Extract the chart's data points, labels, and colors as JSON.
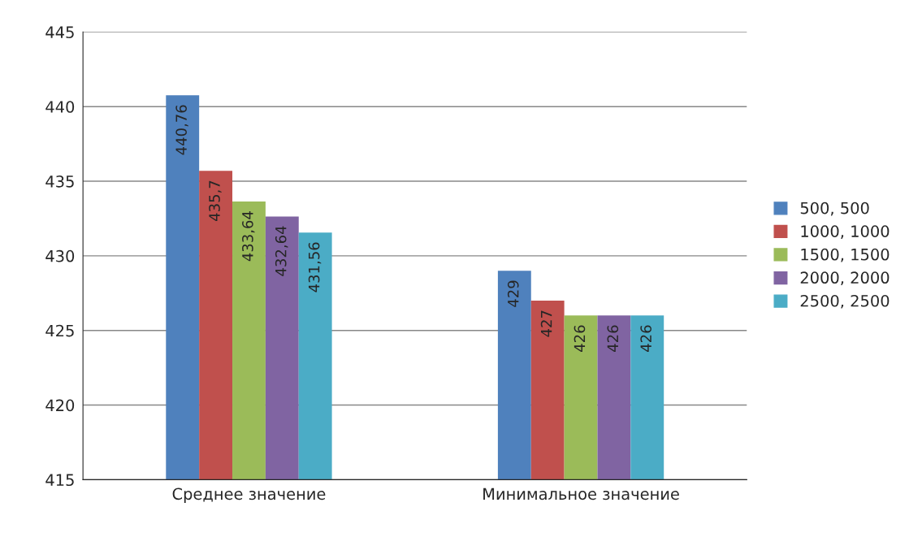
{
  "chart_data": {
    "type": "bar",
    "categories": [
      "Среднее значение",
      "Минимальное значение"
    ],
    "series": [
      {
        "name": "500, 500",
        "color": "#4f81bd",
        "values": [
          440.76,
          429
        ],
        "value_labels": [
          "440,76",
          "429"
        ]
      },
      {
        "name": "1000, 1000",
        "color": "#c0504d",
        "values": [
          435.7,
          427
        ],
        "value_labels": [
          "435,7",
          "427"
        ]
      },
      {
        "name": "1500, 1500",
        "color": "#9bbb59",
        "values": [
          433.64,
          426
        ],
        "value_labels": [
          "433,64",
          "426"
        ]
      },
      {
        "name": "2000, 2000",
        "color": "#8064a2",
        "values": [
          432.64,
          426
        ],
        "value_labels": [
          "432,64",
          "426"
        ]
      },
      {
        "name": "2500, 2500",
        "color": "#4bacc6",
        "values": [
          431.56,
          426
        ],
        "value_labels": [
          "431,56",
          "426"
        ]
      }
    ],
    "ylim": [
      415,
      445
    ],
    "yticks": [
      415,
      420,
      425,
      430,
      435,
      440,
      445
    ],
    "grid": "y",
    "legend": "right"
  }
}
